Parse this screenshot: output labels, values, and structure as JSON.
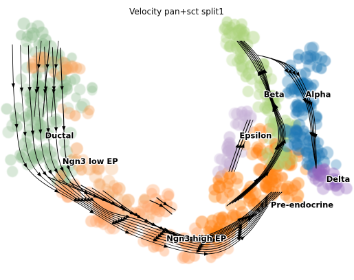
{
  "chart_data": {
    "type": "scatter",
    "title": "Velocity pan+sct split1",
    "xlabel": "",
    "ylabel": "",
    "axes_visible": false,
    "grid": false,
    "legend": "on data",
    "colors": {
      "Ductal": "#8fbc8f",
      "Ngn3 low EP": "#f4a460",
      "Ngn3 high EP": "#ffa366",
      "Pre-endocrine": "#ff7f0e",
      "Beta": "#aad27a",
      "Alpha": "#1f77b4",
      "Delta": "#9467bd",
      "Epsilon": "#c5b0d5"
    },
    "clusters": [
      {
        "name": "Ductal",
        "x": 0.12,
        "y": 0.53
      },
      {
        "name": "Ngn3 low EP",
        "x": 0.17,
        "y": 0.43
      },
      {
        "name": "Ngn3 high EP",
        "x": 0.47,
        "y": 0.13
      },
      {
        "name": "Pre-endocrine",
        "x": 0.77,
        "y": 0.26
      },
      {
        "name": "Beta",
        "x": 0.75,
        "y": 0.69
      },
      {
        "name": "Epsilon",
        "x": 0.68,
        "y": 0.53
      },
      {
        "name": "Alpha",
        "x": 0.87,
        "y": 0.69
      },
      {
        "name": "Delta",
        "x": 0.93,
        "y": 0.36
      }
    ]
  }
}
